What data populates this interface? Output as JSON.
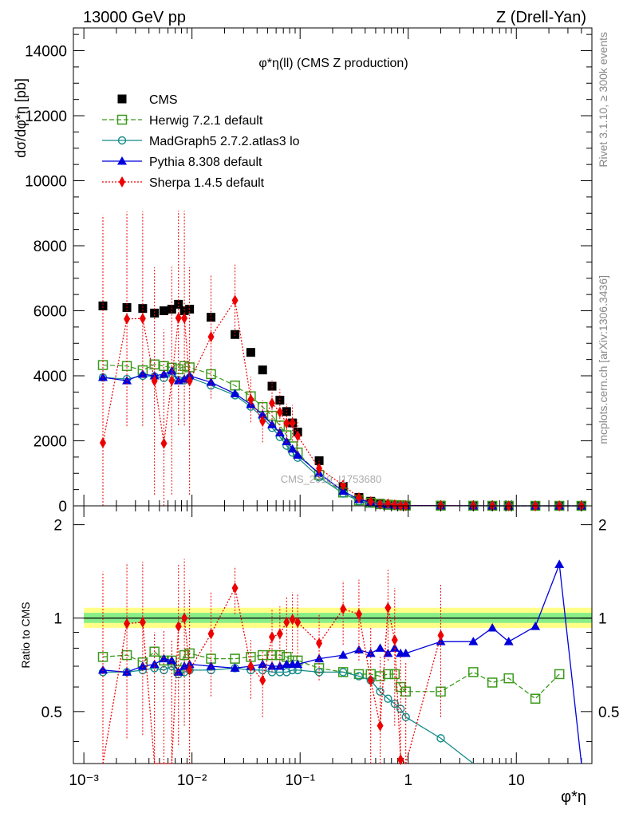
{
  "header": {
    "left": "13000 GeV pp",
    "right": "Z (Drell-Yan)"
  },
  "side_labels": {
    "rivet": "Rivet 3.1.10, ≥ 300k events",
    "mcplots": "mcplots.cern.ch [arXiv:1306.3436]"
  },
  "watermark": "CMS_2019_I1753680",
  "colors": {
    "CMS": "#000000",
    "Herwig": "#3a9a1a",
    "MadGraph": "#138a8a",
    "Pythia": "#0000dd",
    "Sherpa": "#ee0000",
    "band_outer": "#ffff88",
    "band_inner": "#88ee88"
  },
  "chart_data": [
    {
      "type": "line",
      "panel": "main",
      "title": "φ*η(ll) (CMS Z production)",
      "xlabel": "φ*η",
      "ylabel": "dσ/dφ*η [pb]",
      "xscale": "log",
      "xlim": [
        0.0008,
        50
      ],
      "ylim": [
        0,
        14700
      ],
      "yticks": [
        0,
        2000,
        4000,
        6000,
        8000,
        10000,
        12000,
        14000
      ],
      "xtick_labels": [
        "10⁻³",
        "10⁻²",
        "10⁻¹",
        "1",
        "10"
      ],
      "legend_position": "top-left",
      "series": [
        {
          "name": "CMS",
          "style": "square-filled",
          "x": [
            0.0015,
            0.0025,
            0.0035,
            0.0045,
            0.0055,
            0.0065,
            0.0075,
            0.0085,
            0.0095,
            0.015,
            0.025,
            0.035,
            0.045,
            0.055,
            0.065,
            0.075,
            0.085,
            0.095,
            0.15,
            0.25,
            0.35,
            0.45,
            0.55,
            0.65,
            0.75,
            0.85,
            0.95,
            2,
            4,
            6,
            8.5,
            15,
            25,
            40
          ],
          "values": [
            6150,
            6100,
            6070,
            5930,
            6000,
            6050,
            6200,
            6000,
            6050,
            5800,
            5270,
            4720,
            4180,
            3680,
            3250,
            2900,
            2550,
            2270,
            1390,
            600,
            260,
            140,
            80,
            50,
            35,
            25,
            15,
            8,
            4,
            2,
            1,
            0.5,
            0.2,
            0.1
          ]
        },
        {
          "name": "Herwig 7.2.1 default",
          "style": "square-open-dashed",
          "x": [
            0.0015,
            0.0025,
            0.0035,
            0.0045,
            0.0055,
            0.0065,
            0.0075,
            0.0085,
            0.0095,
            0.015,
            0.025,
            0.035,
            0.045,
            0.055,
            0.065,
            0.075,
            0.085,
            0.095,
            0.15,
            0.25,
            0.35,
            0.45,
            0.55,
            0.65,
            0.75,
            0.85,
            0.95,
            2,
            4,
            6,
            8.5,
            15,
            25,
            40
          ],
          "values": [
            4330,
            4300,
            4170,
            4350,
            4300,
            4250,
            4200,
            4300,
            4260,
            4050,
            3700,
            3370,
            3040,
            2770,
            2470,
            2170,
            1830,
            1640,
            950,
            410,
            170,
            95,
            52,
            33,
            23,
            15,
            9,
            5,
            2.5,
            1.2,
            0.6,
            0.3,
            0.1,
            0.05
          ]
        },
        {
          "name": "MadGraph5 2.7.2.atlas3 lo",
          "style": "circle-open-solid",
          "x": [
            0.0015,
            0.0025,
            0.0035,
            0.0045,
            0.0055,
            0.0065,
            0.0075,
            0.0085,
            0.0095,
            0.015,
            0.025,
            0.035,
            0.045,
            0.055,
            0.065,
            0.075,
            0.085,
            0.095,
            0.15,
            0.25,
            0.35,
            0.45,
            0.55,
            0.65,
            0.75,
            0.85,
            0.95,
            2,
            4,
            6,
            8.5,
            15,
            25,
            40
          ],
          "values": [
            3950,
            3900,
            4000,
            3980,
            3930,
            4050,
            3870,
            3860,
            3950,
            3700,
            3400,
            3050,
            2720,
            2400,
            2120,
            1850,
            1640,
            1480,
            880,
            380,
            150,
            70,
            35,
            20,
            12,
            8,
            5,
            1,
            0.5,
            0.2,
            0.1,
            0.05,
            0.02,
            0.01
          ]
        },
        {
          "name": "Pythia 8.308 default",
          "style": "triangle-filled-solid",
          "x": [
            0.0015,
            0.0025,
            0.0035,
            0.0045,
            0.0055,
            0.0065,
            0.0075,
            0.0085,
            0.0095,
            0.015,
            0.025,
            0.035,
            0.045,
            0.055,
            0.065,
            0.075,
            0.085,
            0.095,
            0.15,
            0.25,
            0.35,
            0.45,
            0.55,
            0.65,
            0.75,
            0.85,
            0.95,
            2,
            4,
            6,
            8.5,
            15,
            25,
            40
          ],
          "values": [
            3950,
            3850,
            4050,
            4000,
            4050,
            4150,
            3850,
            3900,
            4000,
            3800,
            3450,
            3120,
            2800,
            2500,
            2250,
            1980,
            1750,
            1560,
            1000,
            450,
            200,
            110,
            63,
            39,
            27,
            19,
            12,
            7,
            3.3,
            1.9,
            0.8,
            0.5,
            0.3,
            0.01
          ]
        },
        {
          "name": "Sherpa 1.4.5 default",
          "style": "diamond-filled-dotted",
          "x": [
            0.0015,
            0.0025,
            0.0035,
            0.0045,
            0.0055,
            0.0065,
            0.0075,
            0.0085,
            0.0095,
            0.015,
            0.025,
            0.035,
            0.045,
            0.055,
            0.065,
            0.075,
            0.085,
            0.095,
            0.15,
            0.25,
            0.35,
            0.45,
            0.55,
            0.65,
            0.75,
            0.85,
            0.95,
            2,
            4,
            6,
            8.5,
            15,
            25,
            40
          ],
          "values": [
            1940,
            5750,
            5760,
            3840,
            1920,
            3850,
            5780,
            5770,
            3840,
            5200,
            6320,
            3270,
            2600,
            3160,
            2880,
            2540,
            2550,
            2150,
            1150,
            640,
            250,
            130,
            50,
            60,
            30,
            10,
            5,
            7,
            4,
            2,
            1,
            0.5,
            0.2,
            0.1
          ],
          "errors": [
            7000,
            3300,
            3300,
            3500,
            3500,
            3500,
            3300,
            3300,
            3500,
            1900,
            1100,
            700,
            650,
            700,
            700,
            600,
            550,
            500,
            300,
            150,
            80,
            60,
            40,
            30,
            20,
            15,
            10,
            5,
            3,
            2,
            1,
            0.5,
            0.2,
            0.1
          ]
        }
      ]
    },
    {
      "type": "line",
      "panel": "ratio",
      "ylabel": "Ratio to CMS",
      "xscale": "log",
      "xlim": [
        0.0008,
        50
      ],
      "ylim": [
        0.34,
        2.3
      ],
      "yticks": [
        0.5,
        1,
        2
      ],
      "band_reference": 1,
      "series": [
        {
          "name": "Herwig 7.2.1 default",
          "x": [
            0.0015,
            0.0025,
            0.0035,
            0.0045,
            0.0055,
            0.0065,
            0.0075,
            0.0085,
            0.0095,
            0.015,
            0.025,
            0.035,
            0.045,
            0.055,
            0.065,
            0.075,
            0.085,
            0.095,
            0.15,
            0.25,
            0.35,
            0.45,
            0.55,
            0.65,
            0.75,
            0.85,
            0.95,
            2,
            4,
            6,
            8.5,
            15,
            25
          ],
          "values": [
            0.75,
            0.76,
            0.72,
            0.78,
            0.73,
            0.73,
            0.68,
            0.76,
            0.77,
            0.74,
            0.74,
            0.75,
            0.76,
            0.76,
            0.76,
            0.75,
            0.73,
            0.73,
            0.69,
            0.67,
            0.66,
            0.66,
            0.65,
            0.66,
            0.66,
            0.6,
            0.58,
            0.58,
            0.67,
            0.62,
            0.64,
            0.55,
            0.66
          ]
        },
        {
          "name": "MadGraph5 2.7.2.atlas3 lo",
          "x": [
            0.0015,
            0.0025,
            0.0035,
            0.0045,
            0.0055,
            0.0065,
            0.0075,
            0.0085,
            0.0095,
            0.015,
            0.025,
            0.035,
            0.045,
            0.055,
            0.065,
            0.075,
            0.085,
            0.095,
            0.15,
            0.25,
            0.35,
            0.45,
            0.55,
            0.65,
            0.75,
            0.85,
            0.95,
            2,
            4
          ],
          "values": [
            0.67,
            0.67,
            0.68,
            0.69,
            0.68,
            0.7,
            0.66,
            0.67,
            0.68,
            0.68,
            0.69,
            0.68,
            0.68,
            0.67,
            0.67,
            0.67,
            0.68,
            0.68,
            0.67,
            0.67,
            0.65,
            0.63,
            0.58,
            0.55,
            0.53,
            0.51,
            0.48,
            0.41,
            0.25
          ]
        },
        {
          "name": "Pythia 8.308 default",
          "x": [
            0.0015,
            0.0025,
            0.0035,
            0.0045,
            0.0055,
            0.0065,
            0.0075,
            0.0085,
            0.0095,
            0.015,
            0.025,
            0.035,
            0.045,
            0.055,
            0.065,
            0.075,
            0.085,
            0.095,
            0.15,
            0.25,
            0.35,
            0.45,
            0.55,
            0.65,
            0.75,
            0.85,
            0.95,
            2,
            4,
            6,
            8.5,
            15,
            25,
            40
          ],
          "values": [
            0.68,
            0.67,
            0.7,
            0.71,
            0.74,
            0.73,
            0.67,
            0.7,
            0.71,
            0.7,
            0.69,
            0.7,
            0.71,
            0.7,
            0.7,
            0.71,
            0.71,
            0.71,
            0.74,
            0.76,
            0.79,
            0.77,
            0.8,
            0.77,
            0.8,
            0.77,
            0.77,
            0.84,
            0.84,
            0.93,
            0.84,
            0.94,
            1.49,
            0.25
          ]
        },
        {
          "name": "Sherpa 1.4.5 default",
          "x": [
            0.0015,
            0.0025,
            0.0035,
            0.0045,
            0.0055,
            0.0065,
            0.0075,
            0.0085,
            0.0095,
            0.015,
            0.025,
            0.035,
            0.045,
            0.055,
            0.065,
            0.075,
            0.085,
            0.095,
            0.15,
            0.25,
            0.35,
            0.45,
            0.55,
            0.65,
            0.75,
            0.85,
            0.95,
            2
          ],
          "values": [
            0.31,
            0.96,
            0.97,
            0.3,
            0.31,
            0.3,
            0.94,
            1.0,
            0.68,
            0.89,
            1.25,
            0.7,
            0.63,
            0.87,
            0.89,
            0.97,
            0.99,
            0.97,
            0.83,
            1.07,
            1.03,
            0.63,
            0.45,
            1.08,
            0.85,
            0.35,
            0.32,
            0.88
          ],
          "errors": [
            1.1,
            0.55,
            0.55,
            0.6,
            0.6,
            0.55,
            0.55,
            0.55,
            0.55,
            0.33,
            0.22,
            0.15,
            0.15,
            0.2,
            0.2,
            0.2,
            0.22,
            0.22,
            0.2,
            0.25,
            0.3,
            0.3,
            0.3,
            0.35,
            0.4,
            0.4,
            0.4,
            0.4
          ]
        }
      ]
    }
  ]
}
